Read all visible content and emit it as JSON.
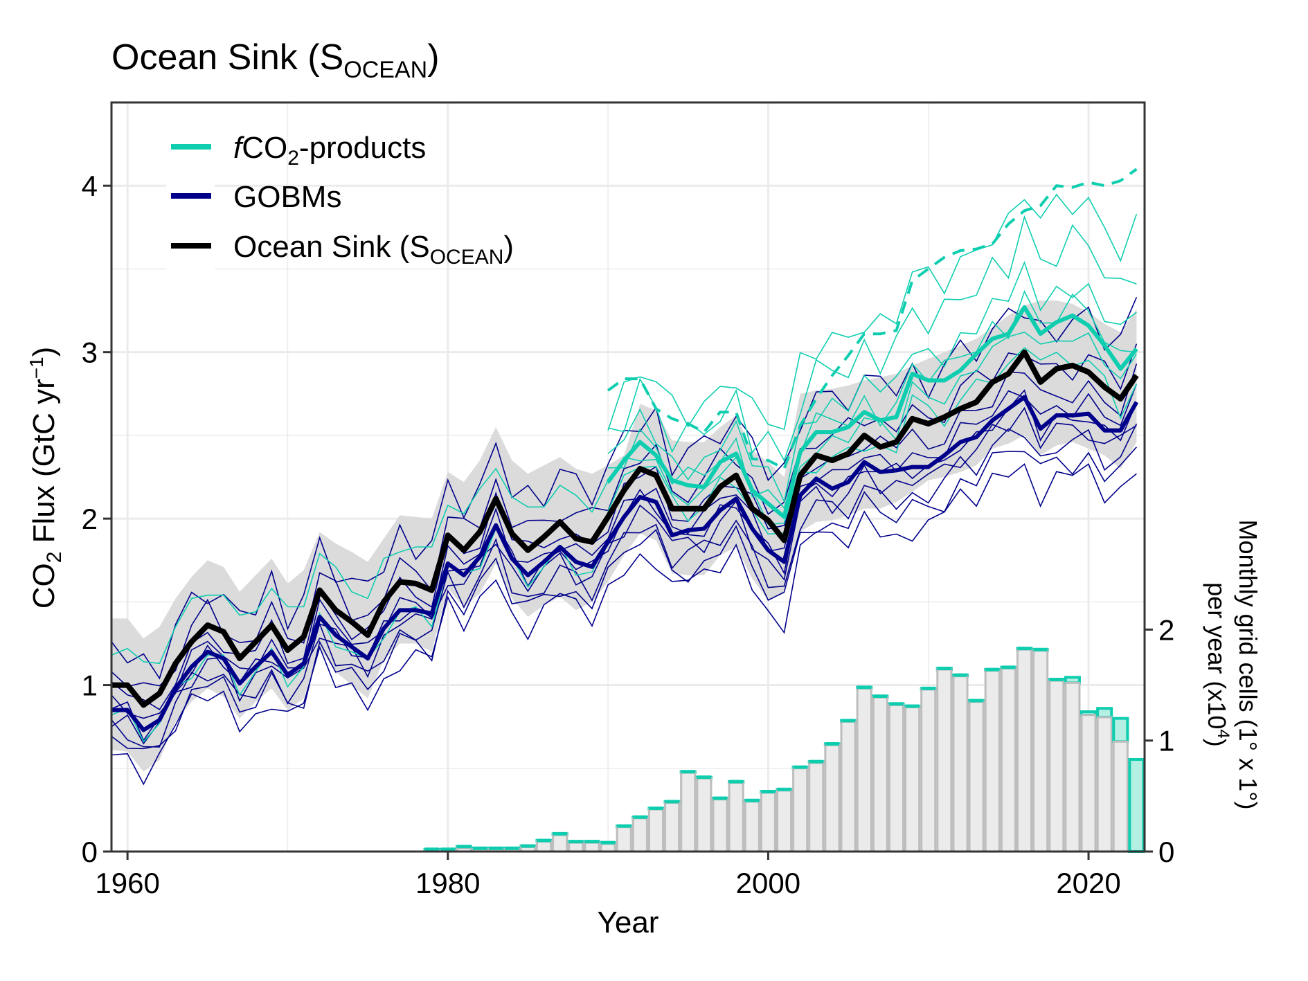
{
  "chart_data": {
    "type": "line",
    "title": "Ocean Sink (S",
    "title_sub": "OCEAN",
    "title_close": ")",
    "xlabel": "Year",
    "ylabel_main": "CO",
    "ylabel_sub": "2",
    "ylabel_rest": " Flux (GtC yr",
    "ylabel_sup": "−1",
    "ylabel_close": ")",
    "y2label_line1": "Monthly grid cells (1° x 1°)",
    "y2label_line2_a": "per year (x10",
    "y2label_line2_sup": "4",
    "y2label_line2_b": ")",
    "xlim": [
      1959,
      2023.5
    ],
    "ylim": [
      0,
      4.5
    ],
    "y2lim": [
      0,
      6.75
    ],
    "grid": true,
    "x_ticks": [
      1960,
      1980,
      2000,
      2020
    ],
    "x_tick_labels": [
      "1960",
      "1980",
      "2000",
      "2020"
    ],
    "y_ticks": [
      0,
      1,
      2,
      3,
      4
    ],
    "y_tick_labels": [
      "0",
      "1",
      "2",
      "3",
      "4"
    ],
    "y2_ticks": [
      0,
      1,
      2
    ],
    "y2_tick_labels": [
      "0",
      "1",
      "2"
    ],
    "legend_placement": "top-left",
    "legend": [
      {
        "name": "fco2-products",
        "prefix": "f",
        "main": "CO",
        "sub": "2",
        "rest": "-products",
        "color": "#0fceb0"
      },
      {
        "name": "gobms",
        "prefix": "",
        "main": "GOBMs",
        "sub": "",
        "rest": "",
        "color": "#00008b"
      },
      {
        "name": "ocean-sink",
        "prefix": "",
        "main": "Ocean Sink (S",
        "sub": "OCEAN",
        "rest": ")",
        "color": "#000000"
      }
    ],
    "colors": {
      "fco2": "#0fceb0",
      "gobm": "#00008b",
      "ocean_sink": "#000000",
      "band": "#d9d9d9",
      "bar_fill": "#ebebeb",
      "bar_edge": "#bdbdbd",
      "bar_teal_fill": "#b3efe3"
    },
    "years_start": 1959,
    "ocean_sink": [
      1.0,
      1.0,
      0.88,
      0.95,
      1.13,
      1.26,
      1.36,
      1.32,
      1.16,
      1.26,
      1.36,
      1.21,
      1.29,
      1.57,
      1.45,
      1.38,
      1.3,
      1.5,
      1.62,
      1.61,
      1.57,
      1.9,
      1.81,
      1.92,
      2.12,
      1.91,
      1.81,
      1.89,
      1.98,
      1.88,
      1.86,
      2.01,
      2.17,
      2.3,
      2.26,
      2.06,
      2.06,
      2.06,
      2.19,
      2.26,
      2.06,
      1.99,
      1.87,
      2.26,
      2.38,
      2.35,
      2.39,
      2.5,
      2.43,
      2.46,
      2.6,
      2.57,
      2.61,
      2.66,
      2.7,
      2.82,
      2.87,
      3.0,
      2.82,
      2.9,
      2.92,
      2.88,
      2.79,
      2.72,
      2.86
    ],
    "gobm_mean": [
      0.85,
      0.85,
      0.73,
      0.79,
      0.98,
      1.11,
      1.2,
      1.16,
      1.01,
      1.11,
      1.2,
      1.06,
      1.13,
      1.41,
      1.3,
      1.23,
      1.16,
      1.34,
      1.45,
      1.45,
      1.43,
      1.73,
      1.66,
      1.77,
      1.96,
      1.76,
      1.66,
      1.74,
      1.83,
      1.74,
      1.71,
      1.86,
      2.01,
      2.13,
      2.1,
      1.9,
      1.93,
      1.94,
      2.05,
      2.12,
      1.94,
      1.81,
      1.74,
      2.14,
      2.24,
      2.18,
      2.22,
      2.34,
      2.28,
      2.29,
      2.31,
      2.31,
      2.38,
      2.46,
      2.49,
      2.59,
      2.66,
      2.73,
      2.54,
      2.62,
      2.62,
      2.63,
      2.53,
      2.53,
      2.7
    ],
    "band_upper": [
      1.4,
      1.4,
      1.28,
      1.35,
      1.52,
      1.65,
      1.75,
      1.71,
      1.56,
      1.66,
      1.76,
      1.61,
      1.69,
      1.92,
      1.85,
      1.8,
      1.74,
      1.88,
      2.02,
      2.01,
      2.0,
      2.28,
      2.22,
      2.35,
      2.55,
      2.35,
      2.27,
      2.32,
      2.37,
      2.3,
      2.27,
      2.32,
      2.38,
      2.69,
      2.65,
      2.47,
      2.46,
      2.46,
      2.55,
      2.62,
      2.41,
      2.34,
      2.25,
      2.75,
      2.77,
      2.78,
      2.8,
      2.83,
      2.85,
      2.87,
      2.92,
      2.96,
      3.0,
      3.04,
      3.08,
      3.15,
      3.22,
      3.28,
      3.31,
      3.31,
      3.29,
      3.24,
      3.17,
      3.12,
      3.26
    ],
    "band_lower": [
      0.61,
      0.6,
      0.48,
      0.55,
      0.78,
      0.9,
      0.98,
      0.93,
      0.8,
      0.9,
      0.98,
      0.85,
      0.92,
      1.22,
      1.08,
      1.0,
      0.92,
      1.15,
      1.25,
      1.25,
      1.2,
      1.58,
      1.47,
      1.55,
      1.73,
      1.52,
      1.41,
      1.48,
      1.53,
      1.45,
      1.5,
      1.62,
      1.78,
      1.91,
      1.87,
      1.67,
      1.66,
      1.66,
      1.78,
      1.83,
      1.64,
      1.51,
      1.55,
      1.92,
      1.98,
      1.99,
      2.02,
      2.06,
      2.06,
      2.1,
      2.16,
      2.23,
      2.25,
      2.28,
      2.32,
      2.42,
      2.45,
      2.5,
      2.38,
      2.44,
      2.46,
      2.42,
      2.38,
      2.3,
      2.46
    ],
    "fco2_start": 1990,
    "fco2_mean": [
      2.22,
      2.35,
      2.46,
      2.38,
      2.23,
      2.2,
      2.19,
      2.34,
      2.39,
      2.17,
      2.09,
      2.01,
      2.4,
      2.52,
      2.52,
      2.55,
      2.64,
      2.59,
      2.61,
      2.87,
      2.83,
      2.83,
      2.89,
      2.99,
      3.08,
      3.11,
      3.27,
      3.11,
      3.18,
      3.22,
      3.16,
      3.04,
      2.9,
      3.02
    ],
    "fco2_dashed": [
      2.77,
      2.84,
      2.84,
      2.66,
      2.6,
      2.57,
      2.52,
      2.64,
      2.64,
      2.36,
      2.35,
      2.3,
      2.56,
      2.72,
      2.86,
      2.98,
      3.11,
      3.11,
      3.13,
      3.43,
      3.5,
      3.57,
      3.61,
      3.62,
      3.65,
      3.77,
      3.85,
      3.88,
      4.0,
      3.99,
      4.02,
      4.0,
      4.03,
      4.1
    ],
    "gobm_members_offsets": [
      {
        "offset": 0.3,
        "jitter": [
          0.05,
          -0.04,
          0.1,
          0.02,
          -0.08,
          0.06,
          0.12,
          -0.05
        ]
      },
      {
        "offset": 0.15,
        "jitter": [
          -0.06,
          0.08,
          0.0,
          0.09,
          -0.03,
          -0.07,
          0.05,
          0.02
        ]
      },
      {
        "offset": 0.05,
        "jitter": [
          0.03,
          -0.02,
          0.06,
          -0.05,
          0.04,
          0.01,
          -0.06,
          0.07
        ]
      },
      {
        "offset": -0.02,
        "jitter": [
          -0.03,
          0.05,
          -0.04,
          0.02,
          0.06,
          -0.05,
          0.03,
          -0.01
        ]
      },
      {
        "offset": -0.1,
        "jitter": [
          0.04,
          -0.06,
          0.02,
          0.07,
          -0.04,
          0.03,
          -0.02,
          0.05
        ]
      },
      {
        "offset": -0.18,
        "jitter": [
          -0.05,
          0.03,
          0.08,
          -0.06,
          0.02,
          0.05,
          -0.07,
          0.01
        ]
      },
      {
        "offset": -0.28,
        "jitter": [
          0.06,
          0.02,
          -0.08,
          0.04,
          -0.03,
          0.07,
          0.01,
          -0.06
        ]
      },
      {
        "offset": -0.4,
        "jitter": [
          -0.02,
          -0.08,
          0.05,
          0.03,
          0.09,
          -0.04,
          0.06,
          -0.03
        ]
      },
      {
        "offset": 0.55,
        "jitter": [
          0.08,
          -0.05,
          0.12,
          -0.09,
          0.04,
          0.1,
          -0.06,
          0.03
        ]
      }
    ],
    "fco2_members_offsets": [
      {
        "offset": 0.45,
        "jitter": [
          0.1,
          -0.06,
          0.14,
          0.04,
          -0.08,
          0.12,
          0.05,
          -0.03
        ]
      },
      {
        "offset": 0.2,
        "jitter": [
          -0.05,
          0.07,
          0.02,
          0.09,
          -0.04,
          0.03,
          -0.08,
          0.06
        ]
      },
      {
        "offset": 0.05,
        "jitter": [
          0.04,
          -0.03,
          0.06,
          -0.07,
          0.05,
          0.02,
          -0.05,
          0.08
        ]
      },
      {
        "offset": -0.1,
        "jitter": [
          -0.06,
          0.05,
          -0.02,
          0.04,
          0.07,
          -0.06,
          0.03,
          -0.02
        ]
      },
      {
        "offset": -0.25,
        "jitter": [
          0.05,
          -0.07,
          0.03,
          0.06,
          -0.05,
          0.04,
          -0.02,
          0.07
        ]
      },
      {
        "offset": 0.7,
        "jitter": [
          0.06,
          0.12,
          -0.05,
          0.1,
          0.03,
          -0.04,
          0.11,
          0.02
        ]
      }
    ],
    "histogram": {
      "years_start": 1979,
      "units": "monthly 1x1 grid cells per year (x10^4)",
      "total": [
        0.02,
        0.02,
        0.045,
        0.03,
        0.03,
        0.03,
        0.05,
        0.1,
        0.16,
        0.09,
        0.09,
        0.08,
        0.23,
        0.31,
        0.39,
        0.45,
        0.72,
        0.67,
        0.48,
        0.63,
        0.46,
        0.54,
        0.56,
        0.76,
        0.81,
        0.97,
        1.18,
        1.48,
        1.4,
        1.33,
        1.31,
        1.47,
        1.65,
        1.59,
        1.36,
        1.64,
        1.66,
        1.83,
        1.82,
        1.55,
        1.57,
        1.26,
        1.29,
        1.2,
        0.83
      ],
      "previous": [
        0.01,
        0.01,
        0.03,
        0.02,
        0.02,
        0.02,
        0.04,
        0.09,
        0.15,
        0.08,
        0.08,
        0.07,
        0.22,
        0.3,
        0.38,
        0.44,
        0.71,
        0.66,
        0.47,
        0.62,
        0.45,
        0.53,
        0.55,
        0.75,
        0.8,
        0.96,
        1.17,
        1.47,
        1.39,
        1.32,
        1.3,
        1.46,
        1.64,
        1.58,
        1.35,
        1.63,
        1.65,
        1.82,
        1.81,
        1.54,
        1.52,
        1.23,
        1.21,
        0.99,
        0.0
      ]
    }
  }
}
